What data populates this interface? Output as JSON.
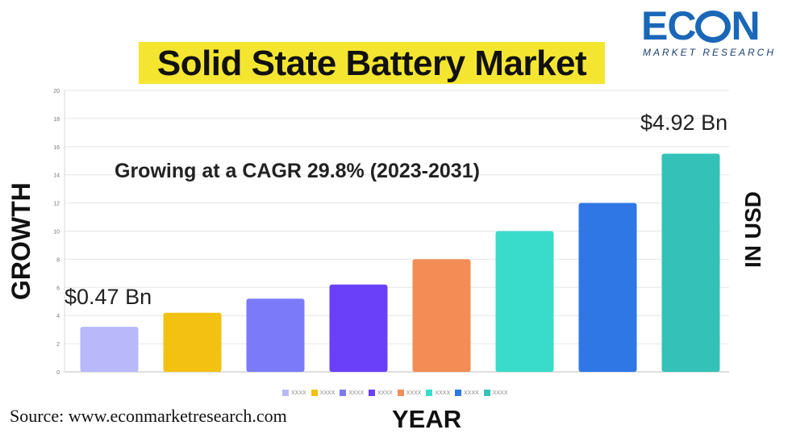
{
  "title": "Solid State Battery Market",
  "logo": {
    "name": "ECON",
    "subtitle": "MARKET RESEARCH",
    "color": "#1a67b8"
  },
  "annotations": {
    "cagr": "Growing at a CAGR 29.8% (2023-2031)",
    "first_value": "$0.47 Bn",
    "last_value": "$4.92 Bn"
  },
  "source": "Source: www.econmarketresearch.com",
  "chart_data": {
    "type": "bar",
    "xlabel": "YEAR",
    "ylabel": "GROWTH",
    "ylabel_right": "IN USD",
    "ylim": [
      0,
      20
    ],
    "yticks": [
      0,
      2,
      4,
      6,
      8,
      10,
      12,
      14,
      16,
      18,
      20
    ],
    "grid": true,
    "legend_position": "bottom",
    "series": [
      {
        "name": "XXXX",
        "value": 3.2,
        "color": "#b8b8fb"
      },
      {
        "name": "XXXX",
        "value": 4.2,
        "color": "#f3c111"
      },
      {
        "name": "XXXX",
        "value": 5.2,
        "color": "#7b7bfa"
      },
      {
        "name": "XXXX",
        "value": 6.2,
        "color": "#6a40f8"
      },
      {
        "name": "XXXX",
        "value": 8.0,
        "color": "#f38c55"
      },
      {
        "name": "XXXX",
        "value": 10.0,
        "color": "#39dccb"
      },
      {
        "name": "XXXX",
        "value": 12.0,
        "color": "#3077e6"
      },
      {
        "name": "XXXX",
        "value": 15.5,
        "color": "#34c2b8"
      }
    ]
  }
}
